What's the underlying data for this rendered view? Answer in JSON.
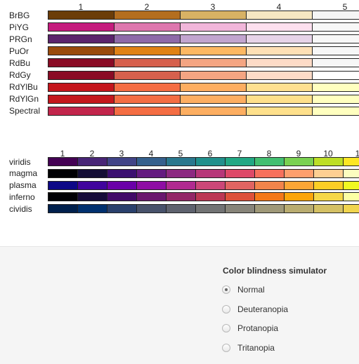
{
  "brewer": {
    "column_numbers": [
      "1",
      "2",
      "3",
      "4",
      "5"
    ],
    "rows": [
      {
        "name": "BrBG",
        "colors": [
          "#6b3d09",
          "#b46e1f",
          "#d8b264",
          "#f6e7c3",
          "#f5f5f5"
        ]
      },
      {
        "name": "PiYG",
        "colors": [
          "#c51b7d",
          "#de77ae",
          "#f1b6da",
          "#fde0ef",
          "#f7f7f7"
        ]
      },
      {
        "name": "PRGn",
        "colors": [
          "#5b246c",
          "#8e6aa8",
          "#c2a5cf",
          "#e7d4e8",
          "#f7f7f7"
        ]
      },
      {
        "name": "PuOr",
        "colors": [
          "#9a4b0b",
          "#e08214",
          "#fdb863",
          "#fee0b6",
          "#f7f7f7"
        ]
      },
      {
        "name": "RdBu",
        "colors": [
          "#8a0b25",
          "#d6604d",
          "#f4a582",
          "#fddbc7",
          "#f7f7f7"
        ]
      },
      {
        "name": "RdGy",
        "colors": [
          "#8a0b25",
          "#d6604d",
          "#f4a582",
          "#fddbc7",
          "#ffffff"
        ]
      },
      {
        "name": "RdYlBu",
        "colors": [
          "#c4161c",
          "#f46d43",
          "#fdae61",
          "#fee090",
          "#ffffbf"
        ]
      },
      {
        "name": "RdYlGn",
        "colors": [
          "#c4161c",
          "#f46d43",
          "#fdae61",
          "#fee08b",
          "#ffffbf"
        ]
      },
      {
        "name": "Spectral",
        "colors": [
          "#c2254b",
          "#f46d43",
          "#fdae61",
          "#fee08b",
          "#ffffbf"
        ]
      }
    ]
  },
  "viridis": {
    "column_numbers": [
      "1",
      "2",
      "3",
      "4",
      "5",
      "6",
      "7",
      "8",
      "9",
      "10",
      "1"
    ],
    "rows": [
      {
        "name": "viridis",
        "colors": [
          "#440154",
          "#482576",
          "#414487",
          "#35608d",
          "#2a788e",
          "#21908c",
          "#22a884",
          "#43bf71",
          "#7ad151",
          "#bddf26",
          "#fde725"
        ]
      },
      {
        "name": "magma",
        "colors": [
          "#000004",
          "#140e36",
          "#3b0f70",
          "#641a80",
          "#8c2981",
          "#b73779",
          "#de4968",
          "#f7705c",
          "#fe9f6d",
          "#fecf92",
          "#fcfdbf"
        ]
      },
      {
        "name": "plasma",
        "colors": [
          "#0d0887",
          "#41049d",
          "#6a00a8",
          "#8f0da4",
          "#b12a90",
          "#cc4778",
          "#e16462",
          "#f2844b",
          "#fca636",
          "#fcce25",
          "#f0f921"
        ]
      },
      {
        "name": "inferno",
        "colors": [
          "#000004",
          "#160b39",
          "#420a68",
          "#6a176e",
          "#932667",
          "#bc3754",
          "#dd513a",
          "#f37819",
          "#fca50a",
          "#f6d746",
          "#fcffa4"
        ]
      },
      {
        "name": "cividis",
        "colors": [
          "#00204d",
          "#00306f",
          "#2a406c",
          "#48526b",
          "#5e626e",
          "#727374",
          "#878479",
          "#9f9878",
          "#b9ac70",
          "#d4c064",
          "#f0d44e"
        ]
      }
    ]
  },
  "simulator": {
    "title": "Color blindness simulator",
    "options": [
      {
        "label": "Normal",
        "checked": true
      },
      {
        "label": "Deuteranopia",
        "checked": false
      },
      {
        "label": "Protanopia",
        "checked": false
      },
      {
        "label": "Tritanopia",
        "checked": false
      }
    ]
  }
}
